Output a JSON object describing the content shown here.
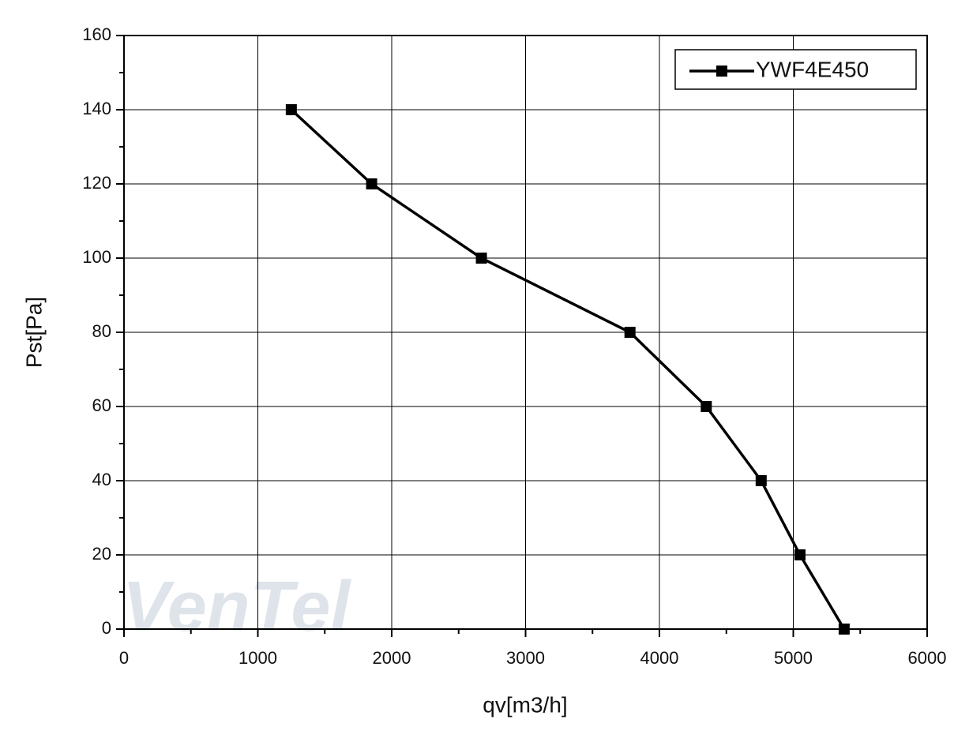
{
  "chart_data": {
    "type": "line",
    "x_label": "qv[m3/h]",
    "y_label": "Pst[Pa]",
    "watermark": "VenTel",
    "x": [
      1250,
      1850,
      2670,
      3780,
      4350,
      4760,
      5050,
      5380
    ],
    "series": [
      {
        "name": "YWF4E450",
        "color": "#000000",
        "marker": "square",
        "values": [
          140,
          120,
          100,
          80,
          60,
          40,
          20,
          0
        ]
      }
    ],
    "xlim": [
      0,
      6000
    ],
    "xticks": [
      0,
      1000,
      2000,
      3000,
      4000,
      5000,
      6000
    ],
    "x_minor_ticks": [
      500,
      1500,
      2500,
      3500,
      4500,
      5500
    ],
    "ylim": [
      0,
      160
    ],
    "yticks": [
      0,
      20,
      40,
      60,
      80,
      100,
      120,
      140,
      160
    ],
    "y_minor_ticks": [
      10,
      30,
      50,
      70,
      90,
      110,
      130,
      150
    ],
    "grid": true,
    "legend": "upper right"
  }
}
